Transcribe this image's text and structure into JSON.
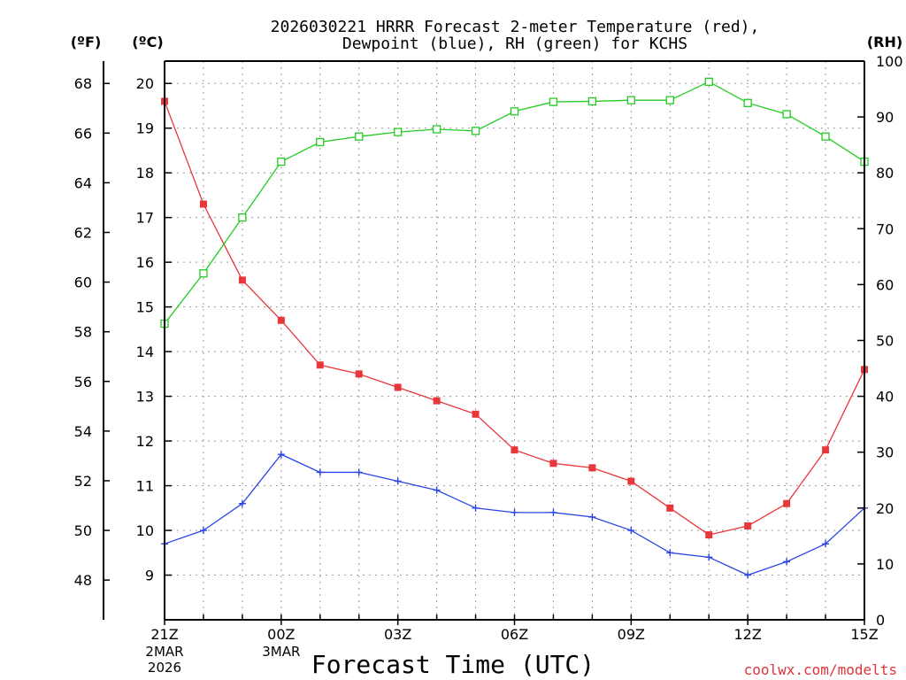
{
  "chart_data": {
    "type": "line",
    "title": "2026030221 HRRR Forecast 2-meter Temperature (red),",
    "subtitle": "Dewpoint (blue), RH (green) for KCHS",
    "xlabel": "Forecast Time (UTC)",
    "credit": "coolwx.com/modelts",
    "unit_labels": {
      "fahrenheit": "(ºF)",
      "celsius": "(ºC)",
      "rh": "(RH)"
    },
    "x_hours": [
      0,
      1,
      2,
      3,
      4,
      5,
      6,
      7,
      8,
      9,
      10,
      11,
      12,
      13,
      14,
      15,
      16,
      17,
      18
    ],
    "x_ticks": [
      {
        "hour": 0,
        "label": "21Z",
        "sub1": "2MAR",
        "sub2": "2026"
      },
      {
        "hour": 3,
        "label": "00Z",
        "sub1": "3MAR",
        "sub2": ""
      },
      {
        "hour": 6,
        "label": "03Z",
        "sub1": "",
        "sub2": ""
      },
      {
        "hour": 9,
        "label": "06Z",
        "sub1": "",
        "sub2": ""
      },
      {
        "hour": 12,
        "label": "09Z",
        "sub1": "",
        "sub2": ""
      },
      {
        "hour": 15,
        "label": "12Z",
        "sub1": "",
        "sub2": ""
      },
      {
        "hour": 18,
        "label": "15Z",
        "sub1": "",
        "sub2": ""
      }
    ],
    "celsius_axis": {
      "min": 8.0,
      "max": 20.5,
      "ticks": [
        9,
        10,
        11,
        12,
        13,
        14,
        15,
        16,
        17,
        18,
        19,
        20
      ]
    },
    "fahrenheit_ticks": [
      48,
      50,
      52,
      54,
      56,
      58,
      60,
      62,
      64,
      66,
      68
    ],
    "rh_axis": {
      "min": 0,
      "max": 100,
      "ticks": [
        0,
        10,
        20,
        30,
        40,
        50,
        60,
        70,
        80,
        90,
        100
      ]
    },
    "series": [
      {
        "name": "Temperature",
        "unit": "C",
        "color": "#e8373a",
        "marker": "filled-square",
        "values": [
          19.6,
          17.3,
          15.6,
          14.7,
          13.7,
          13.5,
          13.2,
          12.9,
          12.6,
          11.8,
          11.5,
          11.4,
          11.1,
          10.5,
          9.9,
          10.1,
          10.6,
          11.8,
          13.6
        ]
      },
      {
        "name": "Dewpoint",
        "unit": "C",
        "color": "#2a44e6",
        "marker": "plus",
        "values": [
          9.7,
          10.0,
          10.6,
          11.7,
          11.3,
          11.3,
          11.1,
          10.9,
          10.5,
          10.4,
          10.4,
          10.3,
          10.0,
          9.5,
          9.4,
          9.0,
          9.3,
          9.7,
          10.5
        ]
      },
      {
        "name": "RH",
        "unit": "%",
        "color": "#22cc22",
        "marker": "open-square",
        "values": [
          53,
          62,
          72,
          82,
          85.5,
          86.5,
          87.3,
          87.8,
          87.5,
          91,
          92.7,
          92.8,
          93,
          93,
          96.3,
          92.5,
          90.5,
          86.5,
          82
        ]
      }
    ]
  }
}
